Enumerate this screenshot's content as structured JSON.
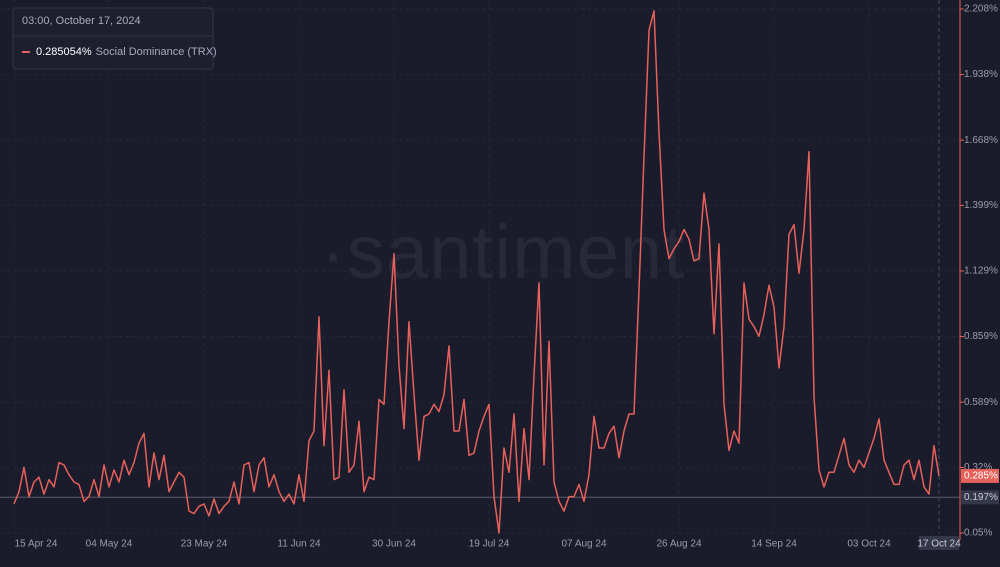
{
  "chart_data": {
    "type": "line",
    "watermark": "·santiment·",
    "tooltip": {
      "date": "03:00, October 17, 2024",
      "value": 0.285054,
      "value_label": "0.285054%",
      "series": "Social Dominance (TRX)"
    },
    "last_value": {
      "value": 0.285,
      "label": "0.285%"
    },
    "reference_line": {
      "value": 0.197,
      "label": "0.197%"
    },
    "cursor_x_label": {
      "value": "2024-10-17",
      "label": "17 Oct 24"
    },
    "xlim": [
      "2024-04-15",
      "2024-10-17"
    ],
    "xticks": [
      {
        "value": "2024-04-15",
        "label": "15 Apr 24"
      },
      {
        "value": "2024-05-04",
        "label": "04 May 24"
      },
      {
        "value": "2024-05-23",
        "label": "23 May 24"
      },
      {
        "value": "2024-06-11",
        "label": "11 Jun 24"
      },
      {
        "value": "2024-06-30",
        "label": "30 Jun 24"
      },
      {
        "value": "2024-07-19",
        "label": "19 Jul 24"
      },
      {
        "value": "2024-08-07",
        "label": "07 Aug 24"
      },
      {
        "value": "2024-08-26",
        "label": "26 Aug 24"
      },
      {
        "value": "2024-09-14",
        "label": "14 Sep 24"
      },
      {
        "value": "2024-10-03",
        "label": "03 Oct 24"
      }
    ],
    "ylim": [
      0.05,
      2.208
    ],
    "yticks": [
      {
        "value": 0.05,
        "label": "0.05%"
      },
      {
        "value": 0.32,
        "label": "0.32%"
      },
      {
        "value": 0.589,
        "label": "0.589%"
      },
      {
        "value": 0.859,
        "label": "0.859%"
      },
      {
        "value": 1.129,
        "label": "1.129%"
      },
      {
        "value": 1.399,
        "label": "1.399%"
      },
      {
        "value": 1.668,
        "label": "1.668%"
      },
      {
        "value": 1.938,
        "label": "1.938%"
      },
      {
        "value": 2.208,
        "label": "2.208%"
      }
    ],
    "grid": true,
    "series": [
      {
        "name": "Social Dominance (TRX)",
        "color": "#e6615b",
        "x": [
          "2024-04-15",
          "2024-04-16",
          "2024-04-17",
          "2024-04-18",
          "2024-04-19",
          "2024-04-20",
          "2024-04-21",
          "2024-04-22",
          "2024-04-23",
          "2024-04-24",
          "2024-04-25",
          "2024-04-26",
          "2024-04-27",
          "2024-04-28",
          "2024-04-29",
          "2024-04-30",
          "2024-05-01",
          "2024-05-02",
          "2024-05-03",
          "2024-05-04",
          "2024-05-05",
          "2024-05-06",
          "2024-05-07",
          "2024-05-08",
          "2024-05-09",
          "2024-05-10",
          "2024-05-11",
          "2024-05-12",
          "2024-05-13",
          "2024-05-14",
          "2024-05-15",
          "2024-05-16",
          "2024-05-17",
          "2024-05-18",
          "2024-05-19",
          "2024-05-20",
          "2024-05-21",
          "2024-05-22",
          "2024-05-23",
          "2024-05-24",
          "2024-05-25",
          "2024-05-26",
          "2024-05-27",
          "2024-05-28",
          "2024-05-29",
          "2024-05-30",
          "2024-05-31",
          "2024-06-01",
          "2024-06-02",
          "2024-06-03",
          "2024-06-04",
          "2024-06-05",
          "2024-06-06",
          "2024-06-07",
          "2024-06-08",
          "2024-06-09",
          "2024-06-10",
          "2024-06-11",
          "2024-06-12",
          "2024-06-13",
          "2024-06-14",
          "2024-06-15",
          "2024-06-16",
          "2024-06-17",
          "2024-06-18",
          "2024-06-19",
          "2024-06-20",
          "2024-06-21",
          "2024-06-22",
          "2024-06-23",
          "2024-06-24",
          "2024-06-25",
          "2024-06-26",
          "2024-06-27",
          "2024-06-28",
          "2024-06-29",
          "2024-06-30",
          "2024-07-01",
          "2024-07-02",
          "2024-07-03",
          "2024-07-04",
          "2024-07-05",
          "2024-07-06",
          "2024-07-07",
          "2024-07-08",
          "2024-07-09",
          "2024-07-10",
          "2024-07-11",
          "2024-07-12",
          "2024-07-13",
          "2024-07-14",
          "2024-07-15",
          "2024-07-16",
          "2024-07-17",
          "2024-07-18",
          "2024-07-19",
          "2024-07-20",
          "2024-07-21",
          "2024-07-22",
          "2024-07-23",
          "2024-07-24",
          "2024-07-25",
          "2024-07-26",
          "2024-07-27",
          "2024-07-28",
          "2024-07-29",
          "2024-07-30",
          "2024-07-31",
          "2024-08-01",
          "2024-08-02",
          "2024-08-03",
          "2024-08-04",
          "2024-08-05",
          "2024-08-06",
          "2024-08-07",
          "2024-08-08",
          "2024-08-09",
          "2024-08-10",
          "2024-08-11",
          "2024-08-12",
          "2024-08-13",
          "2024-08-14",
          "2024-08-15",
          "2024-08-16",
          "2024-08-17",
          "2024-08-18",
          "2024-08-19",
          "2024-08-20",
          "2024-08-21",
          "2024-08-22",
          "2024-08-23",
          "2024-08-24",
          "2024-08-25",
          "2024-08-26",
          "2024-08-27",
          "2024-08-28",
          "2024-08-29",
          "2024-08-30",
          "2024-08-31",
          "2024-09-01",
          "2024-09-02",
          "2024-09-03",
          "2024-09-04",
          "2024-09-05",
          "2024-09-06",
          "2024-09-07",
          "2024-09-08",
          "2024-09-09",
          "2024-09-10",
          "2024-09-11",
          "2024-09-12",
          "2024-09-13",
          "2024-09-14",
          "2024-09-15",
          "2024-09-16",
          "2024-09-17",
          "2024-09-18",
          "2024-09-19",
          "2024-09-20",
          "2024-09-21",
          "2024-09-22",
          "2024-09-23",
          "2024-09-24",
          "2024-09-25",
          "2024-09-26",
          "2024-09-27",
          "2024-09-28",
          "2024-09-29",
          "2024-09-30",
          "2024-10-01",
          "2024-10-02",
          "2024-10-03",
          "2024-10-04",
          "2024-10-05",
          "2024-10-06",
          "2024-10-07",
          "2024-10-08",
          "2024-10-09",
          "2024-10-10",
          "2024-10-11",
          "2024-10-12",
          "2024-10-13",
          "2024-10-14",
          "2024-10-15",
          "2024-10-16",
          "2024-10-17"
        ],
        "values": [
          0.17,
          0.22,
          0.32,
          0.2,
          0.26,
          0.28,
          0.21,
          0.27,
          0.24,
          0.34,
          0.33,
          0.29,
          0.26,
          0.25,
          0.18,
          0.2,
          0.27,
          0.2,
          0.33,
          0.24,
          0.31,
          0.26,
          0.35,
          0.29,
          0.34,
          0.42,
          0.46,
          0.24,
          0.38,
          0.27,
          0.37,
          0.22,
          0.26,
          0.3,
          0.28,
          0.14,
          0.13,
          0.16,
          0.17,
          0.12,
          0.19,
          0.13,
          0.16,
          0.18,
          0.26,
          0.17,
          0.33,
          0.34,
          0.22,
          0.33,
          0.36,
          0.24,
          0.29,
          0.22,
          0.18,
          0.21,
          0.17,
          0.29,
          0.18,
          0.43,
          0.47,
          0.94,
          0.41,
          0.72,
          0.27,
          0.28,
          0.64,
          0.3,
          0.33,
          0.51,
          0.22,
          0.28,
          0.27,
          0.6,
          0.58,
          0.92,
          1.2,
          0.74,
          0.48,
          0.92,
          0.62,
          0.35,
          0.53,
          0.54,
          0.58,
          0.55,
          0.62,
          0.82,
          0.47,
          0.47,
          0.6,
          0.37,
          0.38,
          0.47,
          0.53,
          0.58,
          0.2,
          0.05,
          0.4,
          0.3,
          0.54,
          0.18,
          0.48,
          0.27,
          0.7,
          1.08,
          0.33,
          0.84,
          0.26,
          0.18,
          0.14,
          0.2,
          0.2,
          0.25,
          0.18,
          0.29,
          0.53,
          0.4,
          0.4,
          0.46,
          0.49,
          0.36,
          0.47,
          0.54,
          0.54,
          1.05,
          1.6,
          2.12,
          2.2,
          1.7,
          1.3,
          1.18,
          1.22,
          1.25,
          1.3,
          1.26,
          1.17,
          1.18,
          1.45,
          1.3,
          0.87,
          1.24,
          0.58,
          0.39,
          0.47,
          0.42,
          1.08,
          0.93,
          0.9,
          0.86,
          0.95,
          1.07,
          0.98,
          0.73,
          0.9,
          1.28,
          1.32,
          1.12,
          1.3,
          1.62,
          0.61,
          0.31,
          0.24,
          0.3,
          0.3,
          0.37,
          0.44,
          0.33,
          0.3,
          0.35,
          0.32,
          0.38,
          0.44,
          0.52,
          0.35,
          0.3,
          0.25,
          0.25,
          0.33,
          0.35,
          0.27,
          0.35,
          0.24,
          0.21,
          0.41,
          0.285054
        ]
      }
    ]
  }
}
